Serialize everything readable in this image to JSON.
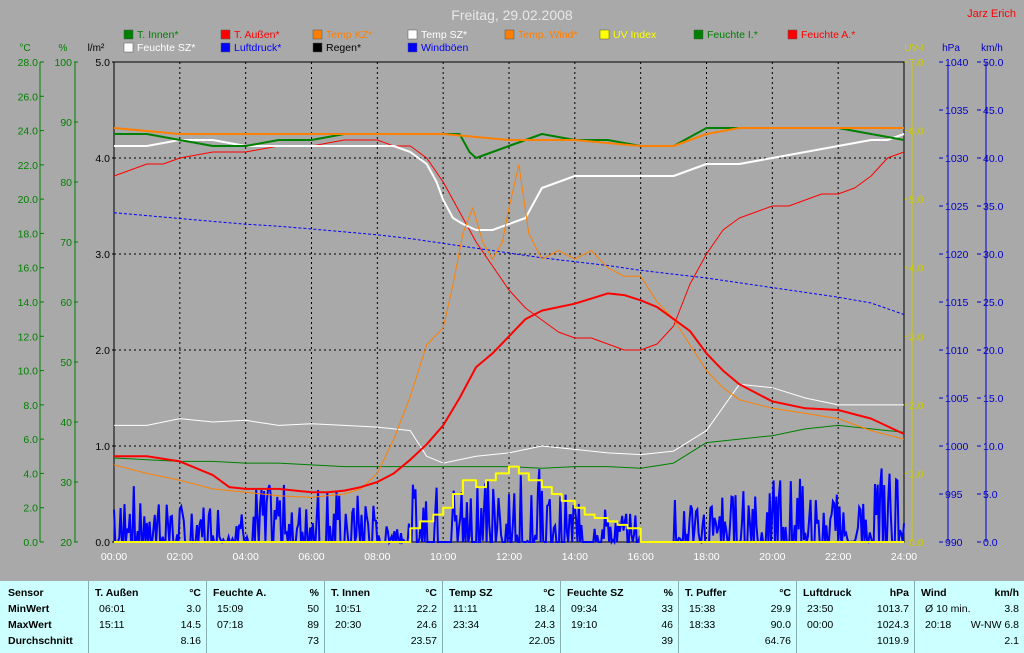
{
  "chart_data": {
    "type": "line",
    "title": "Freitag, 29.02.2008",
    "corner_label": "Jarz Erich",
    "colors": {
      "temp": "#008000",
      "pct": "#008000",
      "rain": "#000000",
      "uv": "#cccc00",
      "hpa": "#0000cc",
      "kmh": "#0000cc",
      "title": "#e8e8e8",
      "corner": "#ff0000"
    },
    "axes": {
      "temp": {
        "unit": "°C",
        "min": 0,
        "max": 28,
        "ticks": [
          "0.0",
          "2.0",
          "4.0",
          "6.0",
          "8.0",
          "10.0",
          "12.0",
          "14.0",
          "16.0",
          "18.0",
          "20.0",
          "22.0",
          "24.0",
          "26.0",
          "28.0"
        ]
      },
      "pct": {
        "unit": "%",
        "min": 20,
        "max": 100,
        "ticks": [
          "20",
          "30",
          "40",
          "50",
          "60",
          "70",
          "80",
          "90",
          "100"
        ]
      },
      "rain": {
        "unit": "l/m²",
        "min": 0,
        "max": 5,
        "ticks": [
          "0.0",
          "1.0",
          "2.0",
          "3.0",
          "4.0",
          "5.0"
        ]
      },
      "uv": {
        "unit": "UV-I",
        "min": 0,
        "max": 7,
        "ticks": [
          "0.0",
          "1.0",
          "2.0",
          "3.0",
          "4.0",
          "5.0",
          "6.0",
          "7.0"
        ]
      },
      "hpa": {
        "unit": "hPa",
        "min": 990,
        "max": 1040,
        "ticks": [
          "990",
          "995",
          "1000",
          "1005",
          "1010",
          "1015",
          "1020",
          "1025",
          "1030",
          "1035",
          "1040"
        ]
      },
      "kmh": {
        "unit": "km/h",
        "min": 0,
        "max": 50,
        "ticks": [
          "0.0",
          "5.0",
          "10.0",
          "15.0",
          "20.0",
          "25.0",
          "30.0",
          "35.0",
          "40.0",
          "45.0",
          "50.0"
        ]
      },
      "x": {
        "min": 0,
        "max": 24,
        "ticks": [
          "00:00",
          "02:00",
          "04:00",
          "06:00",
          "08:00",
          "10:00",
          "12:00",
          "14:00",
          "16:00",
          "18:00",
          "20:00",
          "22:00",
          "24:00"
        ]
      }
    },
    "legend": [
      {
        "name": "T. Innen*",
        "color": "#008000"
      },
      {
        "name": "T. Außen*",
        "color": "#ff0000"
      },
      {
        "name": "Temp KZ*",
        "color": "#ff8000"
      },
      {
        "name": "Temp SZ*",
        "color": "#ffffff"
      },
      {
        "name": "Temp. Wind*",
        "color": "#ff8000"
      },
      {
        "name": "UV Index",
        "color": "#ffff00"
      },
      {
        "name": "Feuchte I.*",
        "color": "#008000"
      },
      {
        "name": "Feuchte A.*",
        "color": "#ff0000"
      },
      {
        "name": "Feuchte SZ*",
        "color": "#ffffff"
      },
      {
        "name": "Luftdruck*",
        "color": "#0000ff"
      },
      {
        "name": "Regen*",
        "color": "#000000"
      },
      {
        "name": "Windböen",
        "color": "#0000ff"
      }
    ],
    "series": [
      {
        "axis": "pct",
        "color": "#ff0000",
        "width": 1,
        "x": [
          0,
          0.5,
          1,
          1.5,
          2,
          3,
          4,
          5,
          6,
          7,
          8,
          8.5,
          9,
          9.5,
          10,
          10.5,
          11,
          11.5,
          12,
          12.5,
          13,
          13.5,
          14,
          14.5,
          15,
          15.5,
          16,
          16.5,
          17,
          17.5,
          18,
          18.5,
          19,
          19.5,
          20,
          20.5,
          21,
          21.5,
          22,
          22.5,
          23,
          23.5,
          24
        ],
        "y": [
          81,
          82,
          83,
          83,
          84,
          85,
          85,
          86,
          86,
          87,
          87,
          86,
          86,
          84,
          80,
          75,
          70,
          66,
          62,
          59,
          57,
          55,
          54,
          54,
          53,
          52,
          52,
          53,
          56,
          63,
          68,
          72,
          74,
          75,
          76,
          76,
          77,
          78,
          78,
          79,
          81,
          84,
          85
        ]
      },
      {
        "axis": "pct",
        "color": "#ffffff",
        "width": 2,
        "x": [
          0,
          1,
          2,
          3,
          4,
          5,
          6,
          7,
          8,
          8.5,
          9,
          9.5,
          9.8,
          10,
          10.3,
          10.6,
          11,
          11.5,
          12,
          12.5,
          13,
          13.5,
          14,
          14.5,
          15,
          16,
          17,
          17.5,
          18,
          18.5,
          19,
          20,
          21,
          22,
          23,
          23.5,
          24
        ],
        "y": [
          86,
          86,
          87,
          87,
          86,
          86,
          86,
          86,
          86,
          86,
          85,
          83,
          80,
          77,
          74,
          73,
          72,
          72,
          73,
          74,
          79,
          80,
          81,
          81,
          81,
          81,
          81,
          82,
          83,
          83,
          83,
          84,
          85,
          86,
          87,
          87,
          88
        ]
      },
      {
        "axis": "pct",
        "color": "#008000",
        "width": 2,
        "x": [
          0,
          1,
          2,
          3,
          4,
          5,
          6,
          7,
          8,
          9,
          10,
          10.5,
          10.8,
          11,
          11.5,
          12,
          12.5,
          13,
          14,
          15,
          16,
          16.5,
          17,
          18,
          19,
          20,
          21,
          22,
          23,
          24
        ],
        "y": [
          88,
          88,
          87,
          86,
          86,
          87,
          87,
          88,
          88,
          88,
          88,
          88,
          85,
          84,
          85,
          86,
          87,
          88,
          87,
          87,
          86,
          86,
          86,
          89,
          89,
          89,
          89,
          89,
          88,
          87
        ]
      },
      {
        "axis": "pct",
        "color": "#ff8000",
        "width": 2,
        "x": [
          0,
          2,
          4,
          6,
          8,
          10,
          12,
          14,
          16,
          17,
          18,
          19,
          20,
          22,
          24
        ],
        "y": [
          89,
          88,
          88,
          88,
          88,
          88,
          87,
          87,
          86,
          86,
          88,
          89,
          89,
          89,
          89
        ]
      },
      {
        "axis": "hpa",
        "color": "#0000ff",
        "width": 1,
        "dash": "3,2",
        "x": [
          0,
          1,
          2,
          3,
          4,
          5,
          6,
          7,
          8,
          9,
          10,
          11,
          12,
          13,
          14,
          15,
          16,
          17,
          18,
          19,
          20,
          21,
          22,
          23,
          24
        ],
        "y": [
          1024.3,
          1024.0,
          1023.7,
          1023.4,
          1023.1,
          1022.9,
          1022.6,
          1022.3,
          1022.0,
          1021.6,
          1021.1,
          1020.6,
          1020.1,
          1019.6,
          1019.2,
          1018.8,
          1018.3,
          1017.9,
          1017.5,
          1017.0,
          1016.5,
          1016.0,
          1015.5,
          1014.9,
          1013.7
        ]
      },
      {
        "axis": "temp",
        "color": "#ffffff",
        "width": 1,
        "x": [
          0,
          1,
          2,
          3,
          4,
          5,
          6,
          7,
          8,
          9,
          9.5,
          10,
          11,
          12,
          13,
          14,
          15,
          16,
          17,
          18,
          19,
          20,
          21,
          22,
          23,
          24
        ],
        "y": [
          6.8,
          6.8,
          7.2,
          7.0,
          7.1,
          6.8,
          6.9,
          6.8,
          6.7,
          6.5,
          5.0,
          4.6,
          5.0,
          5.2,
          5.6,
          5.4,
          5.2,
          5.1,
          5.3,
          6.5,
          9.2,
          9.0,
          8.4,
          8.0,
          8.0,
          8.0
        ]
      },
      {
        "axis": "temp",
        "color": "#008000",
        "width": 1,
        "x": [
          0,
          1,
          2,
          3,
          4,
          5,
          6,
          7,
          8,
          9,
          10,
          11,
          12,
          13,
          14,
          15,
          16,
          17,
          18,
          19,
          20,
          21,
          22,
          23,
          24
        ],
        "y": [
          4.9,
          4.8,
          4.7,
          4.7,
          4.6,
          4.6,
          4.5,
          4.4,
          4.4,
          4.4,
          4.4,
          4.4,
          4.4,
          4.3,
          4.4,
          4.4,
          4.3,
          4.6,
          5.8,
          6.0,
          6.2,
          6.6,
          6.8,
          6.6,
          6.4
        ]
      },
      {
        "axis": "temp",
        "color": "#ff8000",
        "width": 1,
        "x": [
          0,
          1,
          2,
          3,
          4,
          5,
          6,
          7,
          7.5,
          8,
          8.5,
          9,
          9.5,
          10,
          10.3,
          10.6,
          10.9,
          11.2,
          11.5,
          11.8,
          12,
          12.3,
          12.6,
          13,
          13.5,
          14,
          14.5,
          15,
          15.5,
          16,
          16.5,
          17,
          17.5,
          18,
          18.5,
          19,
          20,
          21,
          22,
          23,
          24
        ],
        "y": [
          4.5,
          4.0,
          3.6,
          3.1,
          2.9,
          2.7,
          2.6,
          2.8,
          3.1,
          4.0,
          6.0,
          8.5,
          11.5,
          12.5,
          15.0,
          18.0,
          19.5,
          17.5,
          16.5,
          17.5,
          19.5,
          22.0,
          18.0,
          16.5,
          17.0,
          16.5,
          17.0,
          16.0,
          15.5,
          15.5,
          14.0,
          13.0,
          11.5,
          10.0,
          9.0,
          8.3,
          7.8,
          7.5,
          7.2,
          6.5,
          6.0
        ]
      },
      {
        "axis": "temp",
        "color": "#ff0000",
        "width": 2,
        "x": [
          0,
          1,
          2,
          3,
          3.5,
          4,
          5,
          6,
          6.5,
          7,
          7.5,
          8,
          8.5,
          9,
          9.5,
          10,
          10.5,
          11,
          11.5,
          12,
          12.5,
          13,
          14,
          14.5,
          15,
          15.5,
          16,
          16.5,
          17,
          17.5,
          18,
          18.5,
          19,
          19.5,
          20,
          21,
          22,
          23,
          24
        ],
        "y": [
          5.0,
          5.0,
          4.7,
          3.9,
          3.2,
          3.1,
          3.1,
          2.9,
          2.9,
          3.0,
          3.2,
          3.5,
          4.0,
          4.8,
          5.7,
          6.8,
          8.4,
          10.2,
          11.0,
          12.0,
          13.0,
          13.5,
          13.9,
          14.2,
          14.5,
          14.4,
          14.1,
          13.7,
          13.0,
          12.3,
          11.0,
          10.0,
          9.2,
          8.7,
          8.2,
          7.8,
          7.7,
          7.2,
          6.3
        ]
      },
      {
        "axis": "uv",
        "color": "#ffff00",
        "width": 2,
        "step": true,
        "x": [
          0,
          8.5,
          9,
          9.3,
          9.7,
          10,
          10.3,
          10.6,
          11,
          11.3,
          11.6,
          12,
          12.3,
          12.6,
          13,
          13.3,
          13.6,
          14,
          14.3,
          14.6,
          15,
          15.3,
          15.6,
          16,
          24
        ],
        "y": [
          0,
          0,
          0.2,
          0.3,
          0.4,
          0.5,
          0.7,
          0.9,
          0.8,
          0.9,
          1.0,
          1.1,
          1.0,
          0.9,
          0.8,
          0.7,
          0.6,
          0.5,
          0.4,
          0.35,
          0.3,
          0.25,
          0.2,
          0,
          0
        ]
      }
    ],
    "wind_segments": [
      [
        0,
        2,
        6
      ],
      [
        2,
        4,
        4
      ],
      [
        4,
        7,
        6
      ],
      [
        7,
        8,
        5
      ],
      [
        8,
        9,
        2
      ],
      [
        9,
        11,
        6
      ],
      [
        11,
        13,
        8
      ],
      [
        13,
        14,
        5
      ],
      [
        14,
        15,
        4
      ],
      [
        15,
        16,
        3
      ],
      [
        16,
        17,
        0
      ],
      [
        17,
        19,
        5
      ],
      [
        19,
        21,
        7
      ],
      [
        21,
        22,
        5
      ],
      [
        22,
        23,
        4
      ],
      [
        23,
        24,
        8
      ]
    ],
    "stats_table": {
      "col0": [
        "Sensor",
        "MinWert",
        "MaxWert",
        "Durchschnitt"
      ],
      "columns": [
        {
          "name": "T. Außen",
          "unit": "°C",
          "min_time": "06:01",
          "min": "3.0",
          "max_time": "15:11",
          "max": "14.5",
          "avg": "8.16"
        },
        {
          "name": "Feuchte A.",
          "unit": "%",
          "min_time": "15:09",
          "min": "50",
          "max_time": "07:18",
          "max": "89",
          "avg": "73"
        },
        {
          "name": "T. Innen",
          "unit": "°C",
          "min_time": "10:51",
          "min": "22.2",
          "max_time": "20:30",
          "max": "24.6",
          "avg": "23.57"
        },
        {
          "name": "Temp SZ",
          "unit": "°C",
          "min_time": "11:11",
          "min": "18.4",
          "max_time": "23:34",
          "max": "24.3",
          "avg": "22.05"
        },
        {
          "name": "Feuchte SZ",
          "unit": "%",
          "min_time": "09:34",
          "min": "33",
          "max_time": "19:10",
          "max": "46",
          "avg": "39"
        },
        {
          "name": "T. Puffer",
          "unit": "°C",
          "min_time": "15:38",
          "min": "29.9",
          "max_time": "18:33",
          "max": "90.0",
          "avg": "64.76"
        },
        {
          "name": "Luftdruck",
          "unit": "hPa",
          "min_time": "23:50",
          "min": "1013.7",
          "max_time": "00:00",
          "max": "1024.3",
          "avg": "1019.9"
        },
        {
          "name": "Wind",
          "unit": "km/h",
          "min_time": "Ø 10 min.",
          "min": "3.8",
          "max_time": "20:18",
          "max": "W-NW 6.8",
          "avg": "2.1"
        }
      ]
    }
  }
}
